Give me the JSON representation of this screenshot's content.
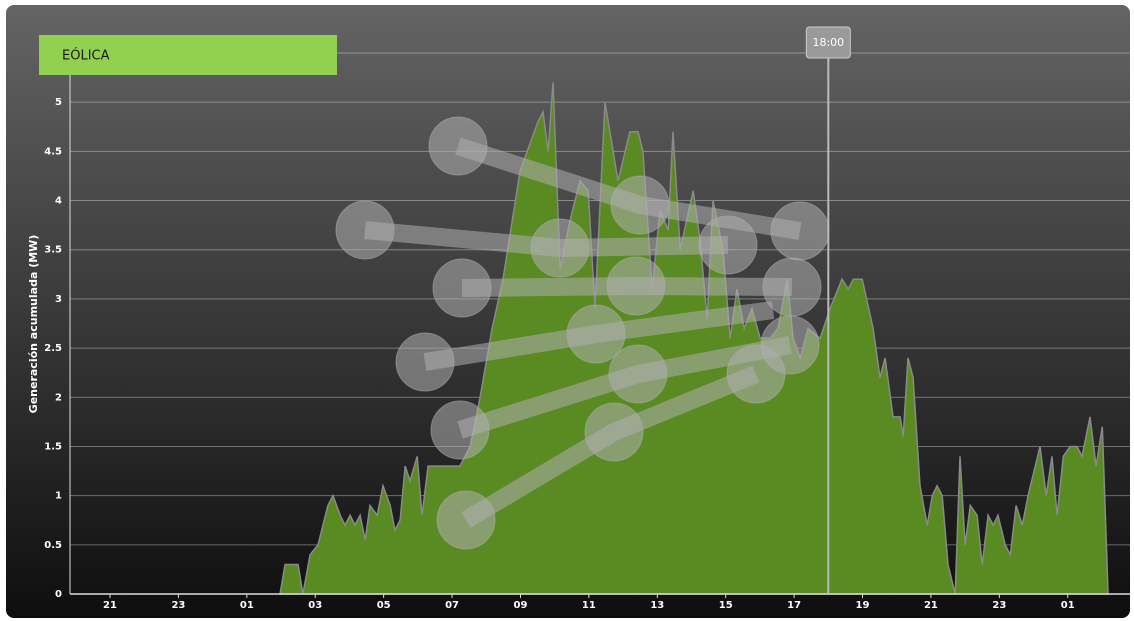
{
  "chart_data": {
    "type": "area",
    "y_label": "Generación acumulada (MW)",
    "xlim": [
      -1.17,
      29.82
    ],
    "xticks": [
      {
        "value": 0,
        "label": "21"
      },
      {
        "value": 2,
        "label": "23"
      },
      {
        "value": 4,
        "label": "01"
      },
      {
        "value": 6,
        "label": "03"
      },
      {
        "value": 8,
        "label": "05"
      },
      {
        "value": 10,
        "label": "07"
      },
      {
        "value": 12,
        "label": "09"
      },
      {
        "value": 14,
        "label": "11"
      },
      {
        "value": 16,
        "label": "13"
      },
      {
        "value": 18,
        "label": "15"
      },
      {
        "value": 20,
        "label": "17"
      },
      {
        "value": 22,
        "label": "19"
      },
      {
        "value": 24,
        "label": "21"
      },
      {
        "value": 26,
        "label": "23"
      },
      {
        "value": 28,
        "label": "01"
      }
    ],
    "ylim": [
      0,
      5.5
    ],
    "yticks": [
      0,
      0.5,
      1,
      1.5,
      2,
      2.5,
      3,
      3.5,
      4,
      4.5,
      5
    ],
    "grid": true,
    "marker": {
      "x": 21,
      "label": "18:00"
    },
    "series": [
      {
        "name": "EÓLICA",
        "color": "#5a8a22",
        "legend_color": "#92d050",
        "x": [
          4.97,
          5.12,
          5.5,
          5.64,
          5.85,
          6.08,
          6.37,
          6.52,
          6.73,
          6.87,
          7.02,
          7.16,
          7.31,
          7.46,
          7.6,
          7.81,
          7.98,
          8.19,
          8.33,
          8.48,
          8.63,
          8.77,
          8.98,
          9.12,
          9.3,
          10.23,
          10.53,
          10.82,
          11.17,
          11.49,
          11.99,
          12.51,
          12.66,
          12.81,
          12.95,
          13.16,
          13.45,
          13.74,
          13.98,
          14.18,
          14.47,
          14.85,
          15.2,
          15.44,
          15.58,
          15.85,
          16.08,
          16.32,
          16.46,
          16.67,
          17.05,
          17.25,
          17.46,
          17.63,
          17.92,
          18.13,
          18.33,
          18.54,
          18.77,
          19.01,
          19.3,
          19.53,
          19.8,
          19.97,
          20.18,
          20.41,
          20.76,
          21.05,
          21.4,
          21.58,
          21.73,
          21.99,
          22.31,
          22.51,
          22.66,
          22.89,
          23.1,
          23.19,
          23.33,
          23.48,
          23.68,
          23.89,
          24.04,
          24.18,
          24.33,
          24.5,
          24.71,
          24.85,
          25.0,
          25.15,
          25.35,
          25.5,
          25.67,
          25.82,
          25.96,
          26.17,
          26.32,
          26.49,
          26.67,
          26.84,
          27.19,
          27.37,
          27.54,
          27.69,
          27.87,
          28.07,
          28.27,
          28.42,
          28.65,
          28.83,
          29.01,
          29.18
        ],
        "values": [
          0,
          0.3,
          0.3,
          0,
          0.4,
          0.5,
          0.9,
          1.0,
          0.8,
          0.7,
          0.8,
          0.7,
          0.8,
          0.55,
          0.9,
          0.8,
          1.1,
          0.9,
          0.65,
          0.75,
          1.3,
          1.15,
          1.4,
          0.8,
          1.3,
          1.3,
          1.5,
          2.0,
          2.7,
          3.2,
          4.3,
          4.8,
          4.9,
          4.5,
          5.2,
          3.3,
          3.8,
          4.2,
          4.1,
          2.9,
          5.0,
          4.2,
          4.7,
          4.7,
          4.5,
          3.1,
          3.9,
          3.7,
          4.7,
          3.5,
          4.1,
          3.6,
          2.8,
          4.0,
          3.5,
          2.6,
          3.1,
          2.7,
          2.9,
          2.6,
          2.6,
          2.7,
          3.2,
          2.6,
          2.4,
          2.7,
          2.6,
          2.9,
          3.2,
          3.1,
          3.2,
          3.2,
          2.7,
          2.2,
          2.4,
          1.8,
          1.8,
          1.6,
          2.4,
          2.2,
          1.1,
          0.7,
          1.0,
          1.1,
          1.0,
          0.3,
          0,
          1.4,
          0.5,
          0.9,
          0.8,
          0.3,
          0.8,
          0.7,
          0.8,
          0.5,
          0.4,
          0.9,
          0.7,
          1.0,
          1.5,
          1.0,
          1.4,
          0.8,
          1.4,
          1.5,
          1.5,
          1.4,
          1.8,
          1.3,
          1.7,
          0
        ]
      }
    ]
  }
}
